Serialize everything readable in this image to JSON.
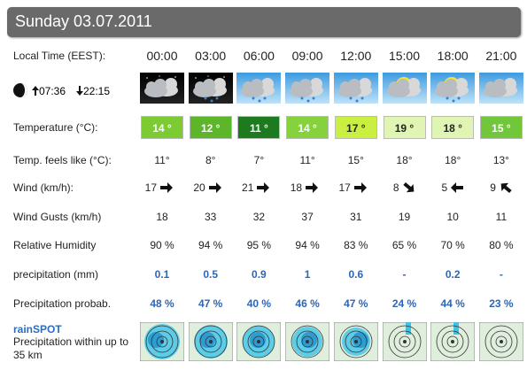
{
  "header": {
    "title": "Sunday 03.07.2011"
  },
  "sun": {
    "sunrise": "07:36",
    "sunset": "22:15"
  },
  "table": {
    "time_label": "Local Time (EEST):",
    "times": [
      "00:00",
      "03:00",
      "06:00",
      "09:00",
      "12:00",
      "15:00",
      "18:00",
      "21:00"
    ],
    "temperature": {
      "label": "Temperature (°C):",
      "values": [
        "14 °",
        "12 °",
        "11 °",
        "14 °",
        "17 °",
        "19 °",
        "18 °",
        "15 °"
      ],
      "colors": [
        "#7dcb33",
        "#5db52a",
        "#1d7a1f",
        "#86d23c",
        "#c9f040",
        "#e0f5b4",
        "#e0f5b4",
        "#72c63a"
      ]
    },
    "feels_like": {
      "label": "Temp. feels like (°C):",
      "values": [
        "11°",
        "8°",
        "7°",
        "11°",
        "15°",
        "18°",
        "18°",
        "13°"
      ]
    },
    "wind": {
      "label": "Wind (km/h):",
      "values": [
        "17",
        "20",
        "21",
        "18",
        "17",
        "8",
        "5",
        "9"
      ]
    },
    "gusts": {
      "label": "Wind Gusts (km/h)",
      "values": [
        "18",
        "33",
        "32",
        "37",
        "31",
        "19",
        "10",
        "11"
      ]
    },
    "humidity": {
      "label": "Relative Humidity",
      "values": [
        "90 %",
        "94 %",
        "95 %",
        "94 %",
        "83 %",
        "65 %",
        "70 %",
        "80 %"
      ]
    },
    "precipitation": {
      "label": "precipitation (mm)",
      "values": [
        "0.1",
        "0.5",
        "0.9",
        "1",
        "0.6",
        "-",
        "0.2",
        "-"
      ]
    },
    "probability": {
      "label": "Precipitation probab.",
      "values": [
        "48 %",
        "47 %",
        "40 %",
        "46 %",
        "47 %",
        "24 %",
        "44 %",
        "23 %"
      ]
    }
  },
  "rainspot": {
    "title": "rainSPOT",
    "text": "Precipitation within up to 35 km"
  }
}
